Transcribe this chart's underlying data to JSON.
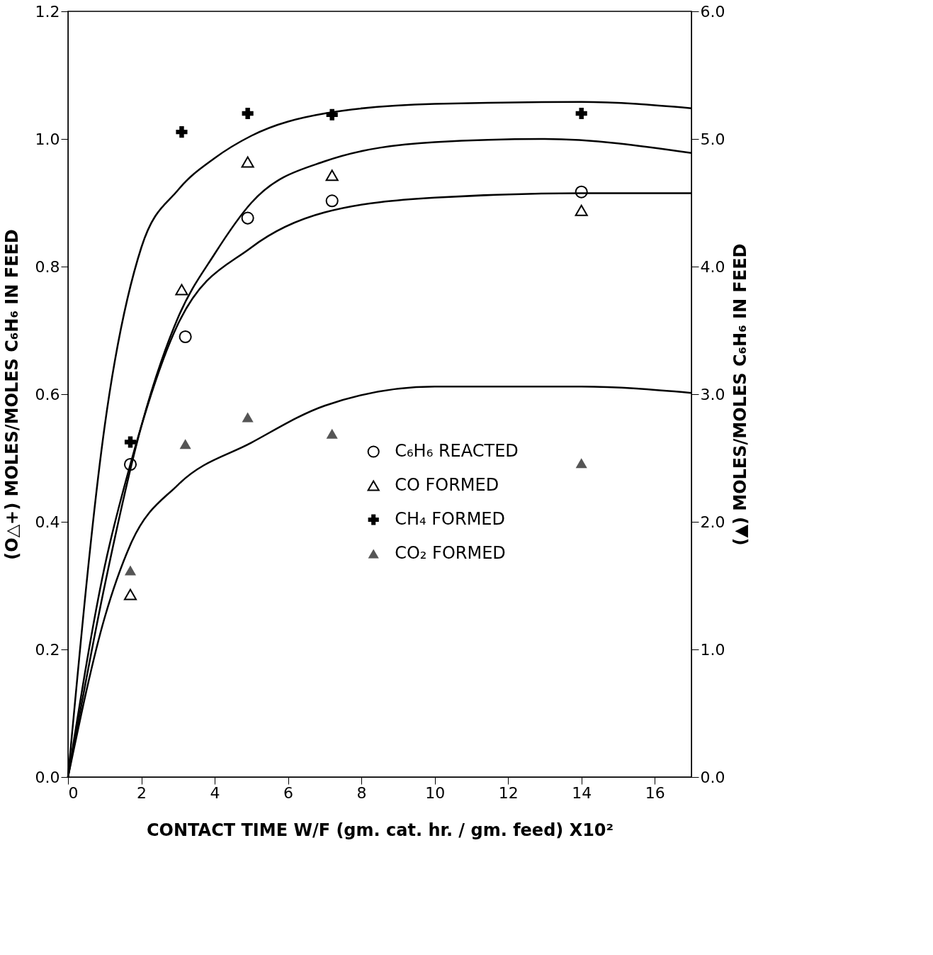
{
  "chart_data": {
    "type": "scatter",
    "xlabel": "CONTACT TIME W/F (gm. cat. hr. / gm. feed) X10²",
    "ylabel": "(O△+) MOLES/MOLES C₆H₆ IN FEED",
    "y2label": "(▲) MOLES/MOLES C₆H₆ IN FEED",
    "xlim": [
      0,
      17
    ],
    "xticks": [
      0,
      2,
      4,
      6,
      8,
      10,
      12,
      14,
      16
    ],
    "ylim": [
      0,
      1.2
    ],
    "yticks": [
      {
        "value": 0,
        "label": "0.0"
      },
      {
        "value": 0.2,
        "label": "0.2"
      },
      {
        "value": 0.4,
        "label": "0.4"
      },
      {
        "value": 0.6,
        "label": "0.6"
      },
      {
        "value": 0.8,
        "label": "0.8"
      },
      {
        "value": 1.0,
        "label": "1.0"
      },
      {
        "value": 1.2,
        "label": "1.2"
      }
    ],
    "y2lim": [
      0,
      6
    ],
    "y2ticks": [
      {
        "value": 0,
        "label": "0.0"
      },
      {
        "value": 1,
        "label": "1.0"
      },
      {
        "value": 2,
        "label": "2.0"
      },
      {
        "value": 3,
        "label": "3.0"
      },
      {
        "value": 4,
        "label": "4.0"
      },
      {
        "value": 5,
        "label": "5.0"
      },
      {
        "value": 6,
        "label": "6.0"
      }
    ],
    "grid": false,
    "legend": "bottom right",
    "series": [
      {
        "name": "C₆H₆ REACTED",
        "marker": "circle",
        "color": "#000000",
        "x": [
          1.7,
          3.2,
          4.9,
          7.2,
          14
        ],
        "values": [
          0.49,
          0.69,
          0.876,
          0.903,
          0.917
        ]
      },
      {
        "name": "CO FORMED",
        "marker": "triangle",
        "color": "#000000",
        "x": [
          1.7,
          3.1,
          4.9,
          7.2,
          14
        ],
        "values": [
          0.286,
          0.764,
          0.964,
          0.943,
          0.888
        ]
      },
      {
        "name": "CH₄ FORMED",
        "marker": "cross",
        "color": "#000000",
        "x": [
          1.7,
          3.1,
          4.9,
          7.2,
          14
        ],
        "values": [
          0.525,
          1.011,
          1.04,
          1.038,
          1.04
        ]
      },
      {
        "name": "CO₂ FORMED",
        "marker": "triangle",
        "color": "#555555",
        "axis": "y2",
        "x": [
          1.7,
          3.2,
          4.9,
          7.2,
          14
        ],
        "values": [
          1.62,
          2.61,
          2.82,
          2.69,
          2.46
        ]
      },
      {
        "type": "line",
        "color": "#000000",
        "x": [
          0,
          1,
          1.7,
          3,
          5,
          7,
          10,
          14,
          17
        ],
        "values": [
          0,
          0.33,
          0.49,
          0.71,
          0.83,
          0.885,
          0.908,
          0.915,
          0.915
        ]
      },
      {
        "type": "line",
        "color": "#000000",
        "x": [
          0,
          1,
          2,
          3,
          4,
          5,
          7,
          10,
          13,
          17
        ],
        "values": [
          0,
          0.3,
          0.55,
          0.72,
          0.82,
          0.9,
          0.965,
          0.995,
          1.0,
          0.978
        ]
      },
      {
        "type": "line",
        "color": "#000000",
        "x": [
          0,
          1,
          2,
          3,
          4,
          5,
          7,
          10,
          14,
          17
        ],
        "values": [
          0,
          0.55,
          0.83,
          0.92,
          0.97,
          1.005,
          1.04,
          1.055,
          1.058,
          1.048
        ]
      },
      {
        "type": "line",
        "color": "#000000",
        "axis": "y2",
        "x": [
          0,
          1,
          1.7,
          3,
          5,
          7,
          10,
          14,
          17
        ],
        "values": [
          0,
          1.25,
          1.82,
          2.29,
          2.62,
          2.91,
          3.06,
          3.06,
          3.01
        ]
      }
    ]
  }
}
